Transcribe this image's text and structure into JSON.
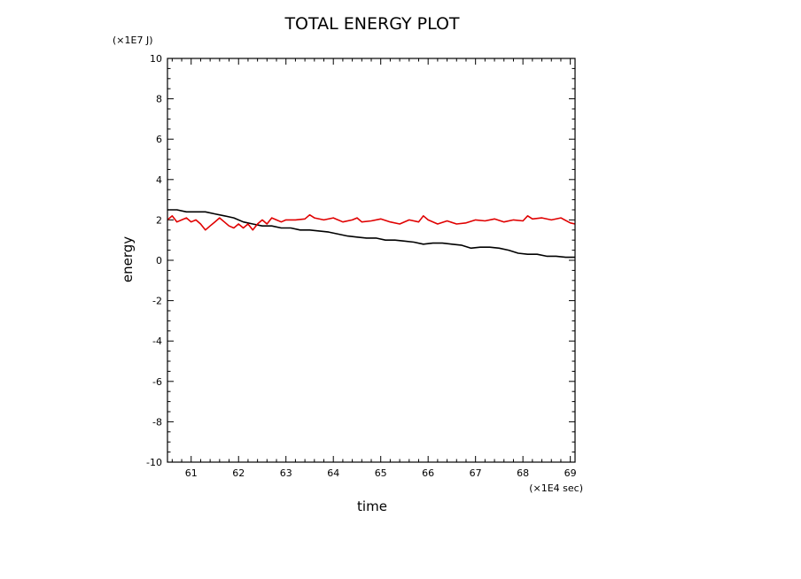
{
  "chart_data": {
    "type": "line",
    "title": "TOTAL ENERGY PLOT",
    "xlabel": "time",
    "ylabel": "energy",
    "x_unit": "(×1E4 sec)",
    "y_unit": "(×1E7 J)",
    "xlim": [
      60.5,
      69.1
    ],
    "ylim": [
      -10,
      10
    ],
    "x_ticks": [
      61,
      62,
      63,
      64,
      65,
      66,
      67,
      68,
      69
    ],
    "y_ticks": [
      -10,
      -8,
      -6,
      -4,
      -2,
      0,
      2,
      4,
      6,
      8,
      10
    ],
    "grid": false,
    "series": [
      {
        "color": "#000000",
        "x": [
          60.5,
          60.7,
          60.9,
          61.1,
          61.3,
          61.5,
          61.7,
          61.9,
          62.1,
          62.3,
          62.5,
          62.7,
          62.9,
          63.1,
          63.3,
          63.5,
          63.7,
          63.9,
          64.1,
          64.3,
          64.5,
          64.7,
          64.9,
          65.1,
          65.3,
          65.5,
          65.7,
          65.9,
          66.1,
          66.3,
          66.5,
          66.7,
          66.9,
          67.1,
          67.3,
          67.5,
          67.7,
          67.9,
          68.1,
          68.3,
          68.5,
          68.7,
          68.9,
          69.1
        ],
        "y": [
          2.5,
          2.5,
          2.4,
          2.4,
          2.4,
          2.3,
          2.2,
          2.1,
          1.9,
          1.8,
          1.7,
          1.7,
          1.6,
          1.6,
          1.5,
          1.5,
          1.45,
          1.4,
          1.3,
          1.2,
          1.15,
          1.1,
          1.1,
          1.0,
          1.0,
          0.95,
          0.9,
          0.8,
          0.85,
          0.85,
          0.8,
          0.75,
          0.6,
          0.65,
          0.65,
          0.6,
          0.5,
          0.35,
          0.3,
          0.3,
          0.2,
          0.2,
          0.15,
          0.15
        ]
      },
      {
        "color": "#e00000",
        "x": [
          60.5,
          60.6,
          60.7,
          60.8,
          60.9,
          61.0,
          61.1,
          61.2,
          61.3,
          61.4,
          61.5,
          61.6,
          61.7,
          61.8,
          61.9,
          62.0,
          62.1,
          62.2,
          62.3,
          62.4,
          62.5,
          62.6,
          62.7,
          62.8,
          62.9,
          63.0,
          63.2,
          63.4,
          63.5,
          63.6,
          63.8,
          64.0,
          64.2,
          64.4,
          64.5,
          64.6,
          64.8,
          65.0,
          65.2,
          65.4,
          65.6,
          65.8,
          65.9,
          66.0,
          66.2,
          66.4,
          66.6,
          66.8,
          67.0,
          67.2,
          67.4,
          67.6,
          67.8,
          68.0,
          68.1,
          68.2,
          68.4,
          68.6,
          68.8,
          69.0,
          69.1
        ],
        "y": [
          2.0,
          2.2,
          1.9,
          2.0,
          2.1,
          1.9,
          2.0,
          1.8,
          1.5,
          1.7,
          1.9,
          2.1,
          1.9,
          1.7,
          1.6,
          1.8,
          1.6,
          1.8,
          1.5,
          1.8,
          2.0,
          1.8,
          2.1,
          2.0,
          1.9,
          2.0,
          2.0,
          2.05,
          2.25,
          2.1,
          2.0,
          2.1,
          1.9,
          2.0,
          2.1,
          1.9,
          1.95,
          2.05,
          1.9,
          1.8,
          2.0,
          1.9,
          2.2,
          2.0,
          1.8,
          1.95,
          1.8,
          1.85,
          2.0,
          1.95,
          2.05,
          1.9,
          2.0,
          1.95,
          2.2,
          2.05,
          2.1,
          2.0,
          2.1,
          1.85,
          1.8
        ]
      }
    ]
  }
}
